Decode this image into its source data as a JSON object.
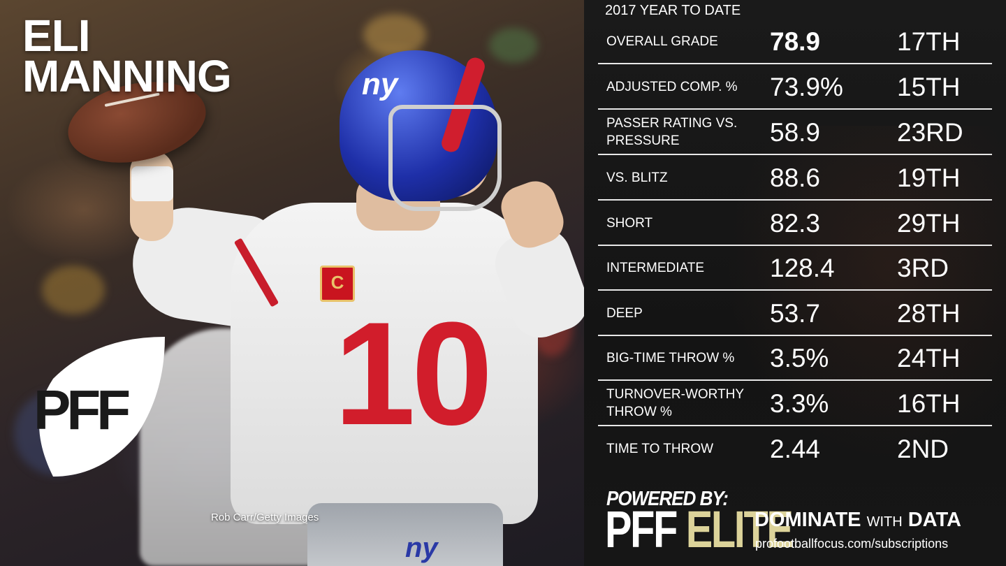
{
  "player": {
    "first_name": "ELI",
    "last_name": "MANNING"
  },
  "photo_credit": "Rob Carr/Getty Images",
  "logo": {
    "text": "PFF"
  },
  "stats_panel": {
    "title": "2017 YEAR TO DATE",
    "rows": [
      {
        "label": "OVERALL GRADE",
        "value": "78.9",
        "rank": "17TH"
      },
      {
        "label": "ADJUSTED COMP. %",
        "value": "73.9%",
        "rank": "15TH"
      },
      {
        "label": "PASSER RATING VS. PRESSURE",
        "value": "58.9",
        "rank": "23RD"
      },
      {
        "label": "VS. BLITZ",
        "value": "88.6",
        "rank": "19TH"
      },
      {
        "label": "SHORT",
        "value": "82.3",
        "rank": "29TH"
      },
      {
        "label": "INTERMEDIATE",
        "value": "128.4",
        "rank": "3RD"
      },
      {
        "label": "DEEP",
        "value": "53.7",
        "rank": "28TH"
      },
      {
        "label": "BIG-TIME THROW %",
        "value": "3.5%",
        "rank": "24TH"
      },
      {
        "label": "TURNOVER-WORTHY THROW %",
        "value": "3.3%",
        "rank": "16TH"
      },
      {
        "label": "TIME TO THROW",
        "value": "2.44",
        "rank": "2ND"
      }
    ]
  },
  "footer": {
    "powered_by": "POWERED BY:",
    "brand_pff": "PFF",
    "brand_elite": "ELITE",
    "tagline_strong_1": "DOMINATE",
    "tagline_small": "WITH",
    "tagline_strong_2": "DATA",
    "url": "profootballfocus.com/subscriptions"
  },
  "colors": {
    "accent_gold": "#dcd39a",
    "giants_blue": "#1e2fa8",
    "giants_red": "#d11d2b"
  }
}
